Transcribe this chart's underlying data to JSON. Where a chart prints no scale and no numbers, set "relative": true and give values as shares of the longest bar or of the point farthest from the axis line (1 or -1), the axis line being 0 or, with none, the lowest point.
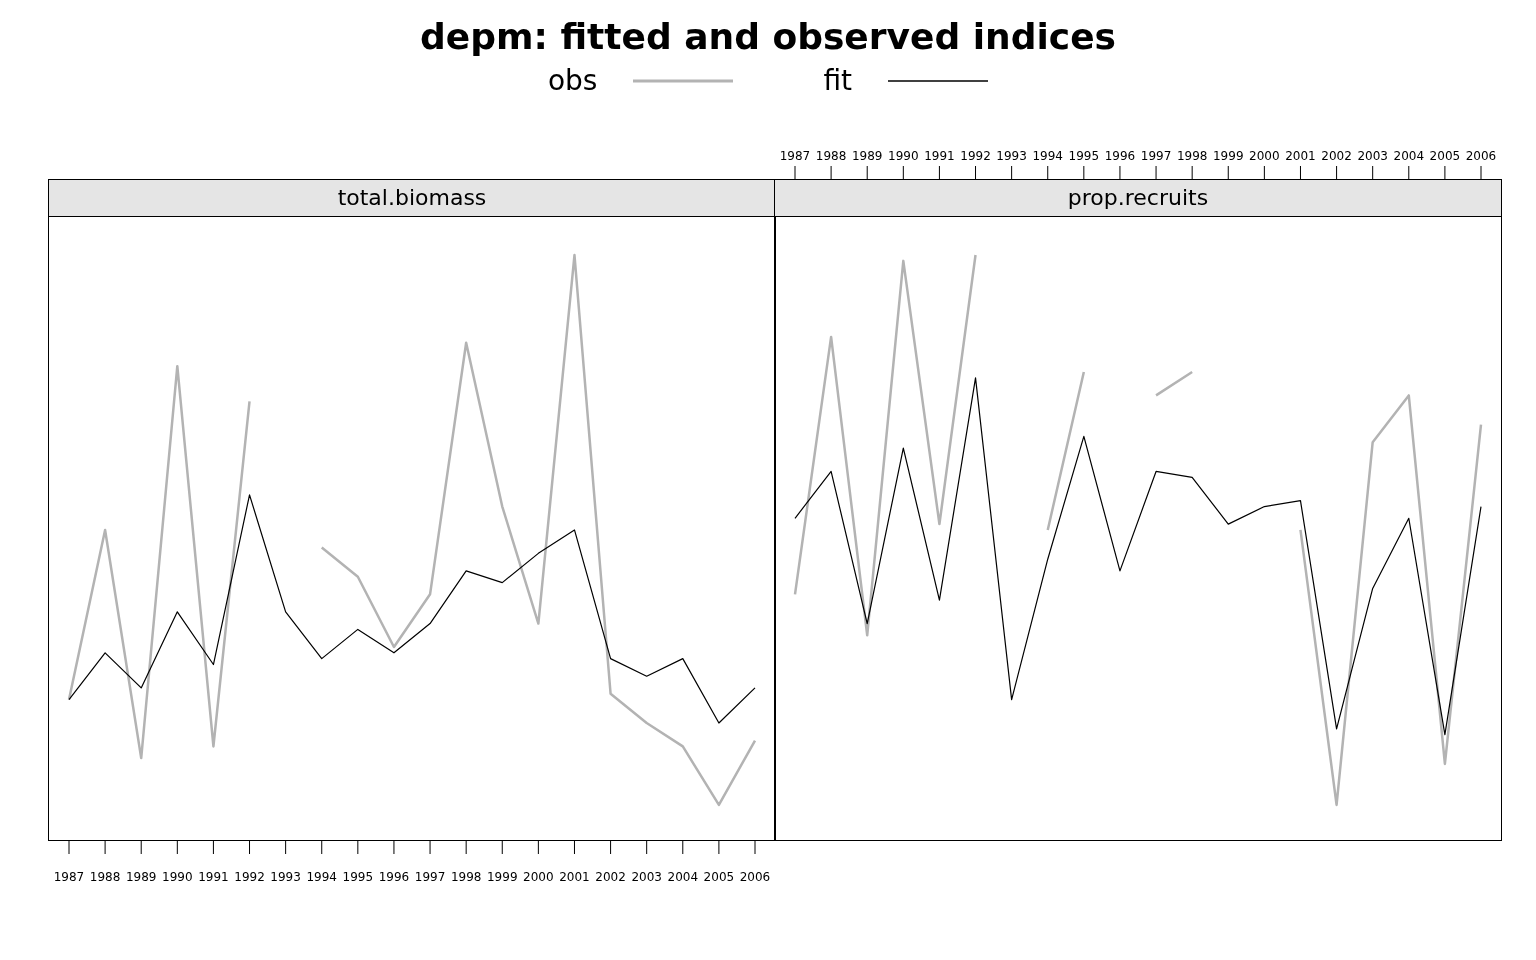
{
  "chart_data": [
    {
      "type": "line",
      "title": "depm: fitted and observed indices",
      "subtitle": "total.biomass",
      "relative": true,
      "legend": "top",
      "categories": [
        "1987",
        "1988",
        "1989",
        "1990",
        "1991",
        "1992",
        "1993",
        "1994",
        "1995",
        "1996",
        "1997",
        "1998",
        "1999",
        "2000",
        "2001",
        "2002",
        "2003",
        "2004",
        "2005",
        "2006"
      ],
      "series": [
        {
          "name": "obs",
          "color": "#b3b3b3",
          "values": [
            0.24,
            0.53,
            0.14,
            0.81,
            0.16,
            0.75,
            null,
            0.5,
            0.45,
            0.33,
            0.42,
            0.85,
            0.57,
            0.37,
            1.0,
            0.25,
            0.2,
            0.16,
            0.06,
            0.17
          ]
        },
        {
          "name": "fit",
          "color": "#000000",
          "values": [
            0.24,
            0.32,
            0.26,
            0.39,
            0.3,
            0.59,
            0.39,
            0.31,
            0.36,
            0.32,
            0.37,
            0.46,
            0.44,
            0.49,
            0.53,
            0.31,
            0.28,
            0.31,
            0.2,
            0.26
          ]
        }
      ]
    },
    {
      "type": "line",
      "subtitle": "prop.recruits",
      "relative": true,
      "categories": [
        "1987",
        "1988",
        "1989",
        "1990",
        "1991",
        "1992",
        "1993",
        "1994",
        "1995",
        "1996",
        "1997",
        "1998",
        "1999",
        "2000",
        "2001",
        "2002",
        "2003",
        "2004",
        "2005",
        "2006"
      ],
      "series": [
        {
          "color": "#b3b3b3",
          "values": [
            0.42,
            0.86,
            0.35,
            0.99,
            0.54,
            1.0,
            null,
            0.53,
            0.8,
            null,
            0.76,
            0.8,
            null,
            null,
            0.53,
            0.06,
            0.68,
            0.76,
            0.13,
            0.71
          ]
        },
        {
          "color": "#000000",
          "values": [
            0.55,
            0.63,
            0.37,
            0.67,
            0.41,
            0.79,
            0.24,
            0.48,
            0.69,
            0.46,
            0.63,
            0.62,
            0.54,
            0.57,
            0.58,
            0.19,
            0.43,
            0.55,
            0.18,
            0.57
          ]
        }
      ]
    }
  ]
}
